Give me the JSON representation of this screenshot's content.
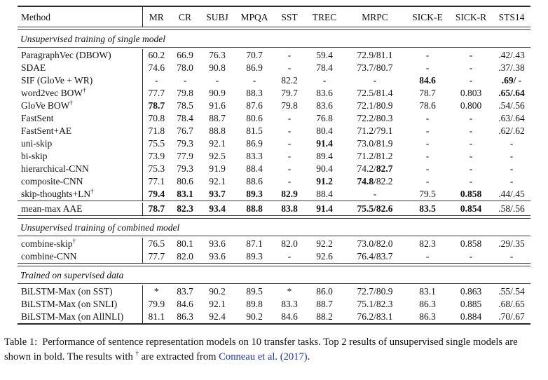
{
  "colors": {
    "citation_blue": "#2234a8",
    "text": "#121212",
    "rule": "#333333"
  },
  "table": {
    "columns": [
      "Method",
      "MR",
      "CR",
      "SUBJ",
      "MPQA",
      "SST",
      "TREC",
      "MRPC",
      "SICK-E",
      "SICK-R",
      "STS14"
    ],
    "sections": [
      {
        "title": "Unsupervised training of single model",
        "blocks": [
          {
            "rows": [
              {
                "method": "ParagraphVec (DBOW)",
                "values": [
                  "60.2",
                  "66.9",
                  "76.3",
                  "70.7",
                  "-",
                  "59.4",
                  "72.9/81.1",
                  "-",
                  "-",
                  ".42/.43"
                ]
              },
              {
                "method": "SDAE",
                "values": [
                  "74.6",
                  "78.0",
                  "90.8",
                  "86.9",
                  "-",
                  "78.4",
                  "73.7/80.7",
                  "-",
                  "-",
                  ".37/.38"
                ]
              },
              {
                "method": "SIF (GloVe + WR)",
                "values": [
                  "-",
                  "-",
                  "-",
                  "-",
                  "82.2",
                  "-",
                  "-",
                  "**84.6**",
                  "-",
                  "**.69/ -**"
                ]
              },
              {
                "method": "word2vec BOW†",
                "values": [
                  "77.7",
                  "79.8",
                  "90.9",
                  "88.3",
                  "79.7",
                  "83.6",
                  "72.5/81.4",
                  "78.7",
                  "0.803",
                  "**.65/.64**"
                ]
              },
              {
                "method": "GloVe BOW†",
                "values": [
                  "**78.7**",
                  "78.5",
                  "91.6",
                  "87.6",
                  "79.8",
                  "83.6",
                  "72.1/80.9",
                  "78.6",
                  "0.800",
                  ".54/.56"
                ]
              },
              {
                "method": "FastSent",
                "values": [
                  "70.8",
                  "78.4",
                  "88.7",
                  "80.6",
                  "-",
                  "76.8",
                  "72.2/80.3",
                  "-",
                  "-",
                  ".63/.64"
                ]
              },
              {
                "method": "FastSent+AE",
                "values": [
                  "71.8",
                  "76.7",
                  "88.8",
                  "81.5",
                  "-",
                  "80.4",
                  "71.2/79.1",
                  "-",
                  "-",
                  ".62/.62"
                ]
              },
              {
                "method": "uni-skip",
                "values": [
                  "75.5",
                  "79.3",
                  "92.1",
                  "86.9",
                  "-",
                  "**91.4**",
                  "73.0/81.9",
                  "-",
                  "-",
                  "-"
                ]
              },
              {
                "method": "bi-skip",
                "values": [
                  "73.9",
                  "77.9",
                  "92.5",
                  "83.3",
                  "-",
                  "89.4",
                  "71.2/81.2",
                  "-",
                  "-",
                  "-"
                ]
              },
              {
                "method": "hierarchical-CNN",
                "values": [
                  "75.3",
                  "79.3",
                  "91.9",
                  "88.4",
                  "-",
                  "90.4",
                  "74.2/**82.7**",
                  "-",
                  "-",
                  "-"
                ]
              },
              {
                "method": "composite-CNN",
                "values": [
                  "77.1",
                  "80.6",
                  "92.1",
                  "88.6",
                  "-",
                  "**91.2**",
                  "**74.8**/82.2",
                  "-",
                  "-",
                  "-"
                ]
              },
              {
                "method": "skip-thoughts+LN†",
                "values": [
                  "**79.4**",
                  "**83.1**",
                  "**93.7**",
                  "**89.3**",
                  "**82.9**",
                  "88.4",
                  "-",
                  "79.5",
                  "**0.858**",
                  ".44/.45"
                ]
              }
            ]
          },
          {
            "rows": [
              {
                "method": "mean-max AAE",
                "values": [
                  "**78.7**",
                  "**82.3**",
                  "**93.4**",
                  "**88.8**",
                  "**83.8**",
                  "**91.4**",
                  "**75.5/82.6**",
                  "**83.5**",
                  "**0.854**",
                  ".58/.56"
                ]
              }
            ]
          }
        ]
      },
      {
        "title": "Unsupervised training of combined model",
        "blocks": [
          {
            "rows": [
              {
                "method": "combine-skip†",
                "values": [
                  "76.5",
                  "80.1",
                  "93.6",
                  "87.1",
                  "82.0",
                  "92.2",
                  "73.0/82.0",
                  "82.3",
                  "0.858",
                  ".29/.35"
                ]
              },
              {
                "method": "combine-CNN",
                "values": [
                  "77.7",
                  "82.0",
                  "93.6",
                  "89.3",
                  "-",
                  "92.6",
                  "76.4/83.7",
                  "-",
                  "-",
                  "-"
                ]
              }
            ]
          }
        ]
      },
      {
        "title": "Trained on supervised data",
        "blocks": [
          {
            "rows": [
              {
                "method": "BiLSTM-Max (on SST)",
                "values": [
                  "*",
                  "83.7",
                  "90.2",
                  "89.5",
                  "*",
                  "86.0",
                  "72.7/80.9",
                  "83.1",
                  "0.863",
                  ".55/.54"
                ]
              },
              {
                "method": "BiLSTM-Max (on SNLI)",
                "values": [
                  "79.9",
                  "84.6",
                  "92.1",
                  "89.8",
                  "83.3",
                  "88.7",
                  "75.1/82.3",
                  "86.3",
                  "0.885",
                  ".68/.65"
                ]
              },
              {
                "method": "BiLSTM-Max (on AllNLI)",
                "values": [
                  "81.1",
                  "86.3",
                  "92.4",
                  "90.2",
                  "84.6",
                  "88.2",
                  "76.2/83.1",
                  "86.3",
                  "0.884",
                  ".70/.67"
                ]
              }
            ]
          }
        ]
      }
    ]
  },
  "caption": {
    "label": "Table 1:",
    "text_before": "Performance of sentence representation models on 10 transfer tasks. Top 2 results of unsupervised single models are shown in bold. The results with ",
    "dagger": "†",
    "text_mid": " are extracted from ",
    "citation": "Conneau et al.",
    "citation_year": " (2017)",
    "text_after": "."
  }
}
